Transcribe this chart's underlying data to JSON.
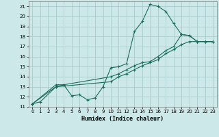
{
  "xlabel": "Humidex (Indice chaleur)",
  "xlim": [
    -0.5,
    23.5
  ],
  "ylim": [
    11,
    21.5
  ],
  "xticks": [
    0,
    1,
    2,
    3,
    4,
    5,
    6,
    7,
    8,
    9,
    10,
    11,
    12,
    13,
    14,
    15,
    16,
    17,
    18,
    19,
    20,
    21,
    22,
    23
  ],
  "yticks": [
    11,
    12,
    13,
    14,
    15,
    16,
    17,
    18,
    19,
    20,
    21
  ],
  "bg_color": "#cce8e8",
  "grid_color": "#aacccc",
  "line_color": "#1a6b5a",
  "series": [
    {
      "x": [
        0,
        1,
        3,
        4,
        5,
        6,
        7,
        8,
        9,
        10,
        11,
        12,
        13,
        14,
        15,
        16,
        17,
        18,
        19,
        20,
        21,
        22,
        23
      ],
      "y": [
        11.3,
        11.5,
        13.0,
        13.2,
        12.1,
        12.2,
        11.7,
        11.9,
        13.0,
        14.9,
        15.0,
        15.3,
        18.5,
        19.5,
        21.2,
        21.0,
        20.5,
        19.3,
        18.2,
        18.1,
        17.5,
        17.5,
        17.5
      ]
    },
    {
      "x": [
        0,
        3,
        4,
        10,
        11,
        12,
        13,
        14,
        15,
        16,
        17,
        18,
        19,
        20,
        21,
        22,
        23
      ],
      "y": [
        11.3,
        13.2,
        13.2,
        14.0,
        14.3,
        14.7,
        15.1,
        15.4,
        15.5,
        16.0,
        16.6,
        17.0,
        18.2,
        18.1,
        17.5,
        17.5,
        17.5
      ]
    },
    {
      "x": [
        0,
        3,
        10,
        11,
        12,
        13,
        14,
        15,
        16,
        17,
        18,
        19,
        20,
        21,
        22,
        23
      ],
      "y": [
        11.3,
        13.0,
        13.5,
        14.0,
        14.3,
        14.7,
        15.1,
        15.4,
        15.7,
        16.3,
        16.7,
        17.2,
        17.5,
        17.5,
        17.5,
        17.5
      ]
    }
  ]
}
